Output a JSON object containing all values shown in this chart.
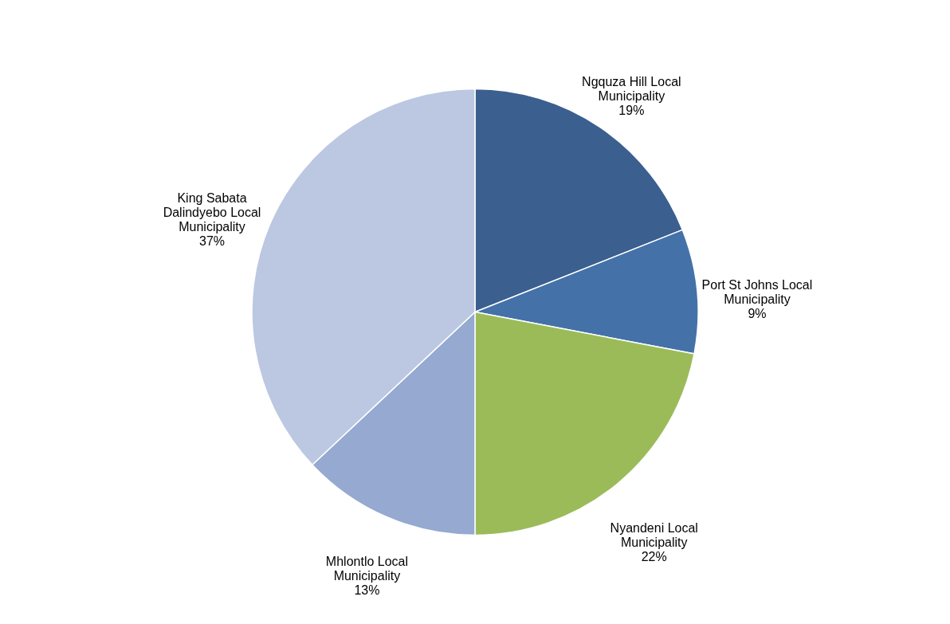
{
  "chart_data": {
    "type": "pie",
    "categories": [
      "Ngquza Hill Local Municipality",
      "Port St Johns Local Municipality",
      "Nyandeni Local Municipality",
      "Mhlontlo Local Municipality",
      "King Sabata Dalindyebo Local Municipality"
    ],
    "values": [
      19,
      9,
      22,
      13,
      37
    ],
    "colors": [
      "#3b5f8f",
      "#4472a8",
      "#9bbb59",
      "#95a9d1",
      "#bcc8e1"
    ],
    "value_labels": [
      "19%",
      "9%",
      "22%",
      "13%",
      "37%"
    ]
  }
}
